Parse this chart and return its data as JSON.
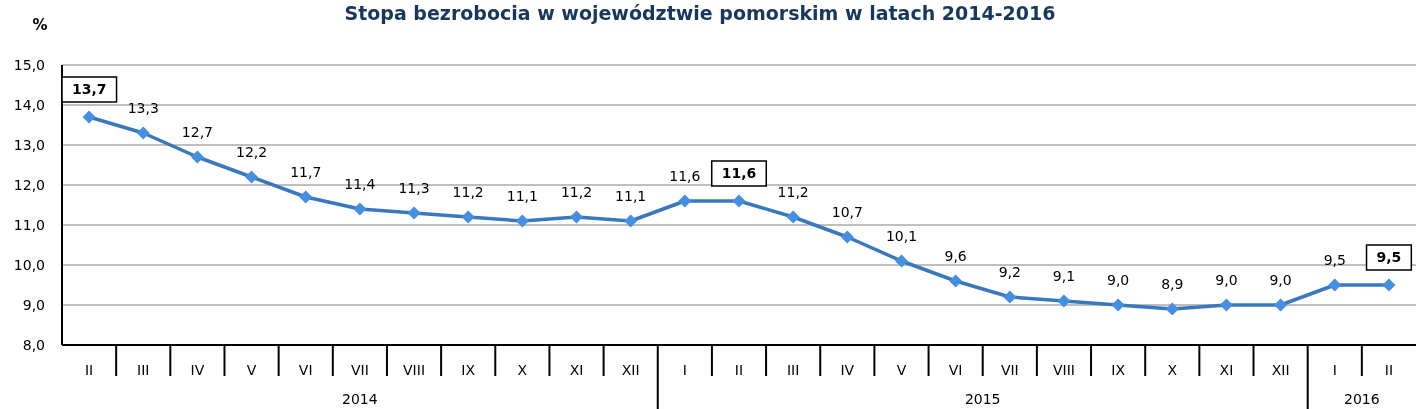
{
  "chart_data": {
    "type": "line",
    "title": "Stopa bezrobocia w województwie pomorskim w latach 2014-2016",
    "ylabel": "%",
    "categories": [
      "II",
      "III",
      "IV",
      "V",
      "VI",
      "VII",
      "VIII",
      "IX",
      "X",
      "XI",
      "XII",
      "I",
      "II",
      "III",
      "IV",
      "V",
      "VI",
      "VII",
      "VIII",
      "IX",
      "X",
      "XI",
      "XII",
      "I",
      "II"
    ],
    "values": [
      13.7,
      13.3,
      12.7,
      12.2,
      11.7,
      11.4,
      11.3,
      11.2,
      11.1,
      11.2,
      11.1,
      11.6,
      11.6,
      11.2,
      10.7,
      10.1,
      9.6,
      9.2,
      9.1,
      9.0,
      8.9,
      9.0,
      9.0,
      9.5,
      9.5
    ],
    "value_labels": [
      null,
      "13,3",
      "12,7",
      "12,2",
      "11,7",
      "11,4",
      "11,3",
      "11,2",
      "11,1",
      "11,2",
      "11,1",
      "11,6",
      null,
      "11,2",
      "10,7",
      "10,1",
      "9,6",
      "9,2",
      "9,1",
      "9,0",
      "8,9",
      "9,0",
      "9,0",
      "9,5",
      null
    ],
    "color": "#3a78bd",
    "marker": "diamond",
    "grid": "y",
    "ylim": [
      8,
      15
    ],
    "yticks": [
      {
        "value": 8,
        "label": "8,0"
      },
      {
        "value": 9,
        "label": "9,0"
      },
      {
        "value": 10,
        "label": "10,0"
      },
      {
        "value": 11,
        "label": "11,0"
      },
      {
        "value": 12,
        "label": "12,0"
      },
      {
        "value": 13,
        "label": "13,0"
      },
      {
        "value": 14,
        "label": "14,0"
      },
      {
        "value": 15,
        "label": "15,0"
      }
    ],
    "annotations": [
      "13,7",
      "11,6",
      "9,5",
      "2014",
      "2015",
      "2016"
    ]
  }
}
